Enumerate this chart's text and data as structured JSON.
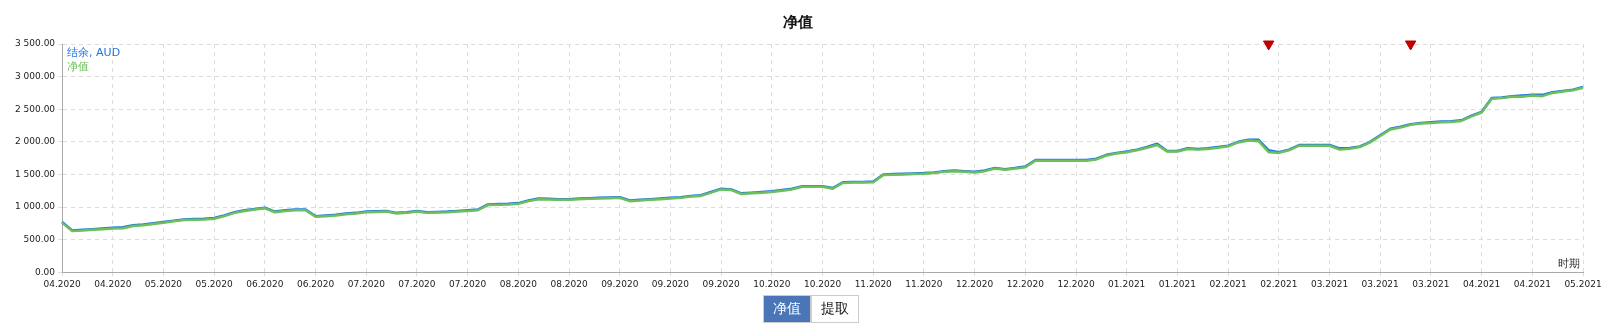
{
  "chart_data": {
    "type": "line",
    "title": "净值",
    "xlabel": "时期",
    "categories": [
      "04.2020",
      null,
      null,
      null,
      null,
      "04.2020",
      null,
      null,
      null,
      null,
      "05.2020",
      null,
      null,
      null,
      null,
      "05.2020",
      null,
      null,
      null,
      null,
      "06.2020",
      null,
      null,
      null,
      null,
      "06.2020",
      null,
      null,
      null,
      null,
      "07.2020",
      null,
      null,
      null,
      null,
      "07.2020",
      null,
      null,
      null,
      null,
      "07.2020",
      null,
      null,
      null,
      null,
      "08.2020",
      null,
      null,
      null,
      null,
      "08.2020",
      null,
      null,
      null,
      null,
      "09.2020",
      null,
      null,
      null,
      null,
      "09.2020",
      null,
      null,
      null,
      null,
      "09.2020",
      null,
      null,
      null,
      null,
      "10.2020",
      null,
      null,
      null,
      null,
      "10.2020",
      null,
      null,
      null,
      null,
      "11.2020",
      null,
      null,
      null,
      null,
      "11.2020",
      null,
      null,
      null,
      null,
      "12.2020",
      null,
      null,
      null,
      null,
      "12.2020",
      null,
      null,
      null,
      null,
      "12.2020",
      null,
      null,
      null,
      null,
      "01.2021",
      null,
      null,
      null,
      null,
      "01.2021",
      null,
      null,
      null,
      null,
      "02.2021",
      null,
      null,
      null,
      null,
      "02.2021",
      null,
      null,
      null,
      null,
      "03.2021",
      null,
      null,
      null,
      null,
      "03.2021",
      null,
      null,
      null,
      null,
      "03.2021",
      null,
      null,
      null,
      null,
      "04.2021",
      null,
      null,
      null,
      null,
      "04.2021",
      null,
      null,
      null,
      null,
      "05.2021"
    ],
    "ylim": [
      0,
      3500
    ],
    "yticks": [
      {
        "value": 0,
        "label": "0.00"
      },
      {
        "value": 500,
        "label": "500.00"
      },
      {
        "value": 1000,
        "label": "1 000.00"
      },
      {
        "value": 1500,
        "label": "1 500.00"
      },
      {
        "value": 2000,
        "label": "2 000.00"
      },
      {
        "value": 2500,
        "label": "2 500.00"
      },
      {
        "value": 3000,
        "label": "3 000.00"
      },
      {
        "value": 3500,
        "label": "3 500.00"
      }
    ],
    "series": [
      {
        "name": "结余, AUD",
        "color": "#1e78e6",
        "values": [
          770,
          640,
          650,
          660,
          670,
          680,
          690,
          720,
          730,
          750,
          770,
          790,
          810,
          815,
          820,
          830,
          870,
          920,
          950,
          970,
          990,
          930,
          950,
          960,
          960,
          860,
          870,
          880,
          900,
          910,
          930,
          935,
          940,
          910,
          920,
          940,
          920,
          925,
          930,
          940,
          950,
          960,
          1040,
          1045,
          1050,
          1060,
          1100,
          1130,
          1125,
          1120,
          1120,
          1130,
          1135,
          1140,
          1145,
          1150,
          1100,
          1110,
          1120,
          1130,
          1140,
          1150,
          1170,
          1180,
          1230,
          1280,
          1270,
          1210,
          1220,
          1230,
          1240,
          1260,
          1280,
          1320,
          1320,
          1320,
          1290,
          1380,
          1385,
          1385,
          1390,
          1500,
          1505,
          1510,
          1515,
          1520,
          1530,
          1550,
          1560,
          1550,
          1540,
          1560,
          1600,
          1580,
          1600,
          1620,
          1720,
          1720,
          1720,
          1720,
          1720,
          1720,
          1740,
          1800,
          1830,
          1850,
          1880,
          1920,
          1970,
          1860,
          1860,
          1900,
          1890,
          1900,
          1920,
          1940,
          2000,
          2030,
          2030,
          1870,
          1840,
          1880,
          1950,
          1950,
          1950,
          1950,
          1900,
          1905,
          1930,
          2000,
          2100,
          2200,
          2230,
          2270,
          2290,
          2300,
          2310,
          2315,
          2330,
          2400,
          2460,
          2670,
          2680,
          2700,
          2710,
          2720,
          2720,
          2760,
          2780,
          2800,
          2840
        ]
      },
      {
        "name": "净值",
        "color": "#6cbf5a",
        "values": [
          760,
          630,
          640,
          650,
          660,
          670,
          675,
          710,
          720,
          740,
          760,
          780,
          800,
          805,
          810,
          820,
          860,
          910,
          940,
          960,
          980,
          920,
          940,
          950,
          950,
          850,
          860,
          870,
          890,
          900,
          920,
          925,
          930,
          900,
          910,
          930,
          910,
          915,
          920,
          930,
          940,
          950,
          1030,
          1035,
          1040,
          1050,
          1090,
          1120,
          1115,
          1110,
          1110,
          1120,
          1125,
          1130,
          1135,
          1140,
          1090,
          1100,
          1110,
          1120,
          1130,
          1140,
          1160,
          1170,
          1220,
          1270,
          1260,
          1200,
          1210,
          1220,
          1230,
          1250,
          1270,
          1310,
          1310,
          1310,
          1280,
          1370,
          1375,
          1375,
          1380,
          1490,
          1495,
          1500,
          1505,
          1510,
          1520,
          1540,
          1550,
          1540,
          1530,
          1550,
          1590,
          1570,
          1590,
          1610,
          1710,
          1710,
          1710,
          1710,
          1710,
          1710,
          1730,
          1790,
          1820,
          1840,
          1870,
          1910,
          1950,
          1850,
          1850,
          1890,
          1880,
          1890,
          1910,
          1930,
          1990,
          2020,
          2010,
          1840,
          1830,
          1870,
          1940,
          1940,
          1940,
          1940,
          1880,
          1895,
          1920,
          1990,
          2090,
          2190,
          2220,
          2260,
          2280,
          2290,
          2300,
          2305,
          2320,
          2390,
          2450,
          2660,
          2670,
          2690,
          2690,
          2710,
          2700,
          2750,
          2770,
          2790,
          2830
        ]
      },
      {
        "type": "scatter",
        "marker": "triangle",
        "color": "#c00000",
        "values": [
          null,
          null,
          null,
          null,
          null,
          null,
          null,
          null,
          null,
          null,
          null,
          null,
          null,
          null,
          null,
          null,
          null,
          null,
          null,
          null,
          null,
          null,
          null,
          null,
          null,
          null,
          null,
          null,
          null,
          null,
          null,
          null,
          null,
          null,
          null,
          null,
          null,
          null,
          null,
          null,
          null,
          null,
          null,
          null,
          null,
          null,
          null,
          null,
          null,
          null,
          null,
          null,
          null,
          null,
          null,
          null,
          null,
          null,
          null,
          null,
          null,
          null,
          null,
          null,
          null,
          null,
          null,
          null,
          null,
          null,
          null,
          null,
          null,
          null,
          null,
          null,
          null,
          null,
          null,
          null,
          null,
          null,
          null,
          null,
          null,
          null,
          null,
          null,
          null,
          null,
          null,
          null,
          null,
          null,
          null,
          null,
          null,
          null,
          null,
          null,
          null,
          null,
          null,
          null,
          null,
          null,
          null,
          null,
          null,
          null,
          null,
          null,
          null,
          null,
          null,
          null,
          null,
          null,
          null,
          3500,
          null,
          null,
          null,
          null,
          null,
          null,
          null,
          null,
          null,
          null,
          null,
          null,
          null,
          3500,
          null,
          null,
          null,
          null,
          null,
          null,
          null,
          null,
          null,
          null,
          null,
          null,
          null,
          null,
          null,
          null,
          null
        ]
      }
    ],
    "grid": true,
    "legend": "top left",
    "annotations": [
      "净值",
      "提取"
    ]
  }
}
